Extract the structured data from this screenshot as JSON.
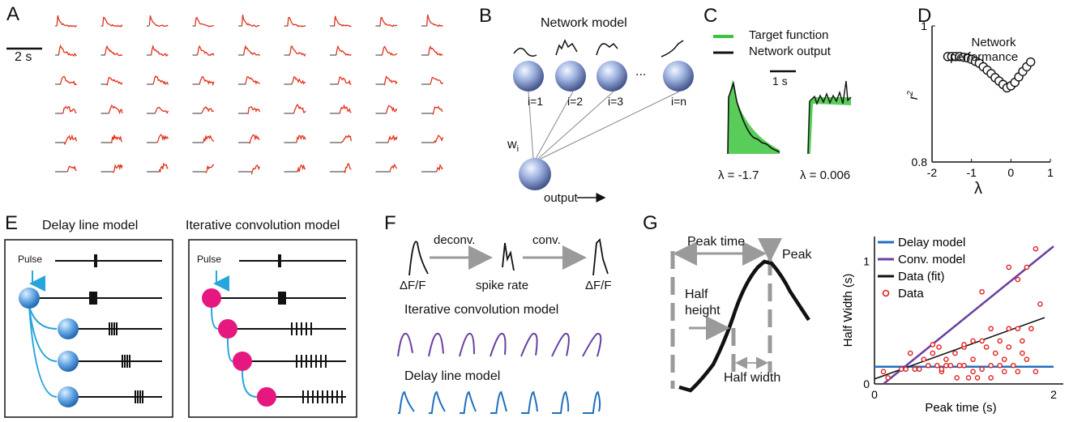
{
  "panel_letters": {
    "A": "A",
    "B": "B",
    "C": "C",
    "D": "D",
    "E": "E",
    "F": "F",
    "G": "G"
  },
  "panelA": {
    "scale_label": "2 s",
    "grid_rows": 6,
    "grid_cols": 9
  },
  "panelB": {
    "title": "Network model",
    "node_labels": [
      "i=1",
      "i=2",
      "i=3",
      "i=n"
    ],
    "ellipsis": "...",
    "weight_label": "w",
    "weight_sub": "i",
    "output_label": "output"
  },
  "panelC": {
    "legend": [
      {
        "name": "Target function",
        "color": "#3cc43c"
      },
      {
        "name": "Network output",
        "color": "#111111"
      }
    ],
    "scale_label": "1 s",
    "lambda_left": "λ = -1.7",
    "lambda_right": "λ = 0.006"
  },
  "panelD": {
    "title_line1": "Network",
    "title_line2": "performance",
    "ylabel": "r",
    "ylabel_sup": "2",
    "xlabel": "λ",
    "chart_data": {
      "type": "scatter",
      "x": [
        -1.6,
        -1.5,
        -1.4,
        -1.3,
        -1.2,
        -1.1,
        -1.0,
        -0.9,
        -0.8,
        -0.7,
        -0.6,
        -0.5,
        -0.4,
        -0.3,
        -0.2,
        -0.1,
        0.0,
        0.1,
        0.2,
        0.3,
        0.4,
        0.5
      ],
      "y": [
        0.955,
        0.955,
        0.955,
        0.955,
        0.954,
        0.953,
        0.951,
        0.948,
        0.945,
        0.94,
        0.935,
        0.93,
        0.924,
        0.919,
        0.914,
        0.909,
        0.912,
        0.917,
        0.925,
        0.933,
        0.94,
        0.947
      ],
      "xlim": [
        -2,
        1
      ],
      "ylim": [
        0.8,
        1
      ],
      "xticks": [
        "-2",
        "-1",
        "0",
        "1"
      ],
      "yticks": [
        "0.8",
        "1"
      ]
    }
  },
  "panelE": {
    "left_title": "Delay line model",
    "right_title": "Iterative convolution model",
    "pulse_label": "Pulse",
    "colors": {
      "delay_node": "#4a90d9",
      "conv_node": "#e6177f",
      "link": "#28a6dc"
    }
  },
  "panelF": {
    "step1": "deconv.",
    "step2": "conv.",
    "label_dff_left": "ΔF/F",
    "label_spike": "spike rate",
    "label_dff_right": "ΔF/F",
    "conv_title": "Iterative convolution model",
    "delay_title": "Delay line model",
    "colors": {
      "conv": "#6a3fa0",
      "delay": "#1f6fbf"
    }
  },
  "panelG": {
    "peak_time_label": "Peak time",
    "peak_label": "Peak",
    "half_height_line1": "Half",
    "half_height_line2": "height",
    "half_width_label": "Half width",
    "chart": {
      "ylabel": "Half Width (s)",
      "xlabel": "Peak time (s)",
      "xticks": [
        "0",
        "2"
      ],
      "yticks": [
        "0",
        "1"
      ],
      "legend": [
        {
          "name": "Delay model",
          "color": "#1f6fbf",
          "kind": "line"
        },
        {
          "name": "Conv. model",
          "color": "#6a3fa0",
          "kind": "line"
        },
        {
          "name": "Data (fit)",
          "color": "#111111",
          "kind": "line"
        },
        {
          "name": "Data",
          "color": "#e02020",
          "kind": "marker"
        }
      ]
    },
    "chart_data": {
      "type": "scatter",
      "xlim": [
        0,
        2
      ],
      "ylim": [
        0,
        1.2
      ],
      "series": [
        {
          "name": "Delay model",
          "type": "line",
          "x": [
            0,
            2
          ],
          "y": [
            0.14,
            0.14
          ]
        },
        {
          "name": "Conv. model",
          "type": "line",
          "x": [
            0.1,
            2
          ],
          "y": [
            0,
            1.12
          ]
        },
        {
          "name": "Data (fit)",
          "type": "line",
          "x": [
            0,
            1.9
          ],
          "y": [
            0.04,
            0.54
          ]
        },
        {
          "name": "Data",
          "type": "scatter",
          "x": [
            0.1,
            0.15,
            0.3,
            0.35,
            0.4,
            0.45,
            0.5,
            0.55,
            0.6,
            0.65,
            0.7,
            0.72,
            0.75,
            0.8,
            0.8,
            0.85,
            0.9,
            0.92,
            0.95,
            1.0,
            1.0,
            1.05,
            1.1,
            1.1,
            1.15,
            1.2,
            1.25,
            1.3,
            1.3,
            1.35,
            1.4,
            1.45,
            1.45,
            1.5,
            1.55,
            1.6,
            1.65,
            1.7,
            1.75,
            1.8,
            1.85,
            1.5,
            1.6,
            1.7,
            1.8,
            1.2,
            1.3,
            1.4,
            0.65,
            0.75,
            1.0,
            1.1,
            1.2,
            1.5,
            1.6,
            1.65
          ],
          "y": [
            0.1,
            0.05,
            0.12,
            0.12,
            0.25,
            0.12,
            0.12,
            0.2,
            0.15,
            0.25,
            0.15,
            0.3,
            0.1,
            0.15,
            0.2,
            0.15,
            0.25,
            0.05,
            0.15,
            0.15,
            0.3,
            0.05,
            0.2,
            0.1,
            0.05,
            0.35,
            0.3,
            0.15,
            0.05,
            0.25,
            0.15,
            0.2,
            0.1,
            0.3,
            0.15,
            0.1,
            0.25,
            0.2,
            0.45,
            0.1,
            0.65,
            0.95,
            0.85,
            0.95,
            1.1,
            0.75,
            0.45,
            0.35,
            0.32,
            0.12,
            0.32,
            0.35,
            0.12,
            0.45,
            0.45,
            0.35
          ]
        }
      ]
    }
  }
}
